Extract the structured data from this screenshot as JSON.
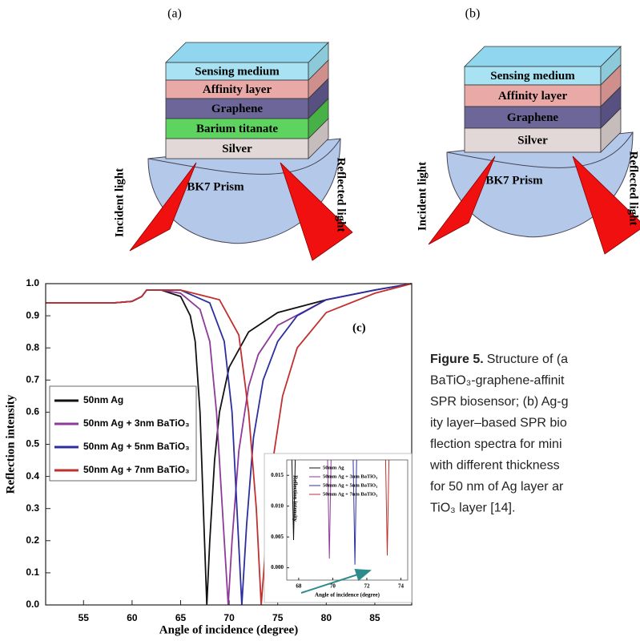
{
  "panels": [
    {
      "label": "(a)",
      "layers": [
        "Sensing medium",
        "Affinity layer",
        "Graphene",
        "Barium titanate",
        "Silver"
      ],
      "prism": "BK7 Prism",
      "incident": "Incident light",
      "reflected": "Reflected light"
    },
    {
      "label": "(b)",
      "layers": [
        "Sensing medium",
        "Affinity layer",
        "Graphene",
        "Silver"
      ],
      "prism": "BK7 Prism",
      "incident": "Incident light",
      "reflected": "Reflected light"
    }
  ],
  "chart_data": [
    {
      "type": "line",
      "annotation": "(c)",
      "xlabel": "Angle of incidence (degree)",
      "ylabel": "Reflection intensity",
      "xlim": [
        51.1,
        88.8
      ],
      "ylim": [
        0,
        1
      ],
      "xticks": [
        55,
        60,
        65,
        70,
        75,
        80,
        85
      ],
      "yticks": [
        {
          "value": 0,
          "label": "0.0"
        },
        0.1,
        0.2,
        0.3,
        0.4,
        0.5,
        0.6,
        0.7,
        0.8,
        0.9,
        {
          "value": 1,
          "label": "1.0"
        }
      ],
      "legend": "center left",
      "series": [
        {
          "name": "50nm Ag",
          "color": "#111111",
          "x": [
            51.1,
            55,
            58,
            60,
            61,
            61.5,
            63,
            65,
            66,
            66.5,
            67,
            67.4,
            67.7,
            68,
            68.5,
            69,
            70,
            72,
            75,
            80,
            85,
            88.8
          ],
          "values": [
            0.94,
            0.94,
            0.94,
            0.945,
            0.96,
            0.98,
            0.98,
            0.96,
            0.9,
            0.82,
            0.6,
            0.25,
            0,
            0.2,
            0.45,
            0.6,
            0.74,
            0.85,
            0.91,
            0.95,
            0.98,
            1
          ]
        },
        {
          "name": "50nm Ag + 3nm BaTiO₃",
          "color": "#8e3a9a",
          "x": [
            51.1,
            55,
            58,
            60,
            61,
            61.5,
            63,
            65,
            67,
            68,
            68.7,
            69.3,
            69.9,
            70.3,
            71,
            72,
            73,
            75,
            80,
            85,
            88.8
          ],
          "values": [
            0.94,
            0.94,
            0.94,
            0.945,
            0.96,
            0.98,
            0.98,
            0.97,
            0.92,
            0.82,
            0.6,
            0.3,
            0,
            0.2,
            0.48,
            0.68,
            0.78,
            0.87,
            0.95,
            0.98,
            1
          ]
        },
        {
          "name": "50nm Ag + 5nm BaTiO₃",
          "color": "#2b2f9e",
          "x": [
            51.1,
            55,
            58,
            60,
            61,
            61.5,
            63,
            65,
            68,
            69.5,
            70.3,
            70.8,
            71.3,
            71.8,
            72.5,
            73.5,
            75,
            77,
            80,
            85,
            88.8
          ],
          "values": [
            0.94,
            0.94,
            0.94,
            0.945,
            0.96,
            0.98,
            0.98,
            0.98,
            0.94,
            0.82,
            0.6,
            0.3,
            0,
            0.25,
            0.52,
            0.7,
            0.82,
            0.9,
            0.95,
            0.98,
            1
          ]
        },
        {
          "name": "50nm Ag + 7nm BaTiO₃",
          "color": "#c0302f",
          "x": [
            51.1,
            55,
            58,
            60,
            61,
            61.5,
            63,
            65,
            69,
            71,
            72,
            72.8,
            73.3,
            73.8,
            74.5,
            75.5,
            77,
            80,
            85,
            88.8
          ],
          "values": [
            0.94,
            0.94,
            0.94,
            0.945,
            0.96,
            0.98,
            0.98,
            0.98,
            0.95,
            0.84,
            0.6,
            0.3,
            0,
            0.2,
            0.45,
            0.65,
            0.8,
            0.91,
            0.97,
            1
          ]
        }
      ]
    },
    {
      "type": "line",
      "xlabel": "Angle of incidence (degree)",
      "ylabel": "Reflection intensity",
      "xlim": [
        67.3,
        74.4
      ],
      "ylim": [
        -0.002,
        0.0175
      ],
      "xticks": [
        68,
        70,
        72,
        74
      ],
      "yticks": [
        {
          "value": 0,
          "label": "0.000"
        },
        0.005,
        {
          "value": 0.01,
          "label": "0.010"
        },
        0.015
      ],
      "legend": "upper center",
      "series": [
        {
          "name": "50mm Ag",
          "color": "#111111",
          "x": [
            67.6,
            67.7,
            67.8
          ],
          "values": [
            0.0175,
            0.0045,
            0.0175
          ]
        },
        {
          "name": "50mm Ag + 3nm BaTiO₃",
          "color": "#8e3a9a",
          "x": [
            69.7,
            69.8,
            69.9
          ],
          "values": [
            0.0175,
            0.0015,
            0.0175
          ]
        },
        {
          "name": "50mm Ag + 5nm BaTiO₃",
          "color": "#2b2f9e",
          "x": [
            71.2,
            71.3,
            71.4
          ],
          "values": [
            0.0175,
            0.0005,
            0.0175
          ]
        },
        {
          "name": "50mm Ag + 7nm BaTiO₃",
          "color": "#c0302f",
          "x": [
            73.1,
            73.2,
            73.3
          ],
          "values": [
            0.0175,
            0.002,
            0.0175
          ]
        }
      ]
    }
  ],
  "caption": {
    "label": "Figure 5.",
    "lines": [
      "Structure of (a",
      "BaTiO₃-graphene-affinit",
      "SPR biosensor; (b) Ag-g",
      "ity layer–based SPR bio",
      "flection spectra for mini",
      "with different thickness",
      "for 50 nm of Ag layer ar",
      "TiO₃ layer [14]."
    ]
  }
}
